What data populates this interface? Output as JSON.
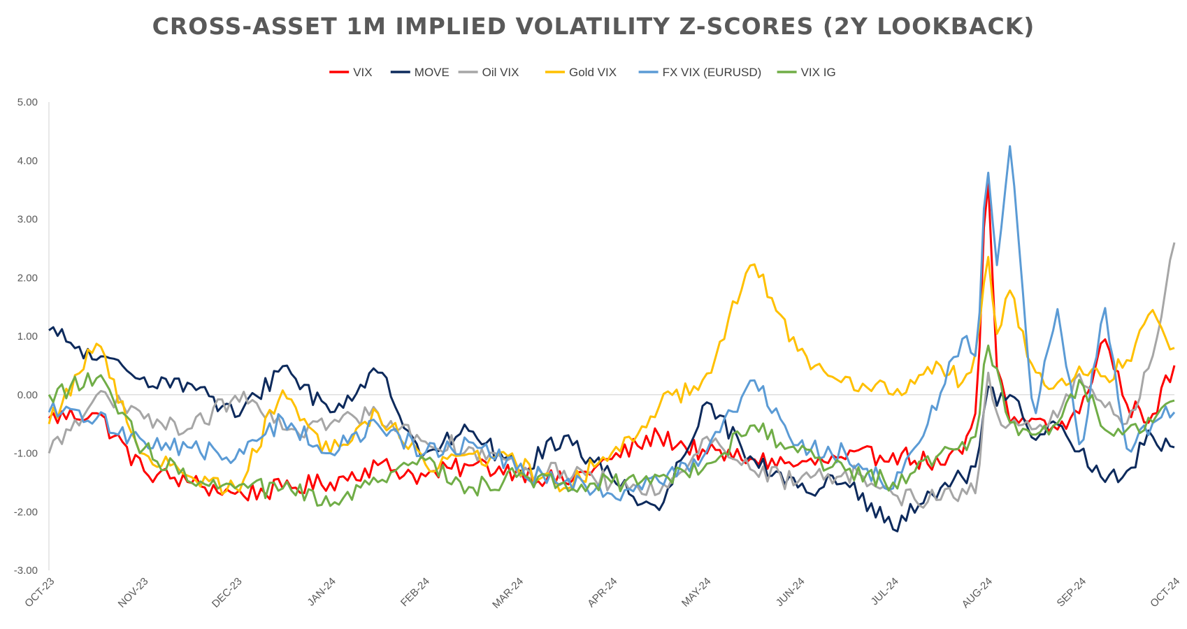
{
  "chart_data": {
    "type": "line",
    "title": "CROSS-ASSET 1M IMPLIED VOLATILITY Z-SCORES (2Y LOOKBACK)",
    "xlabel": "",
    "ylabel": "",
    "ylim": [
      -3,
      5
    ],
    "yticks": [
      "5.00",
      "4.00",
      "3.00",
      "2.00",
      "1.00",
      "0.00",
      "-1.00",
      "-2.00",
      "-3.00"
    ],
    "ytick_values": [
      5,
      4,
      3,
      2,
      1,
      0,
      -1,
      -2,
      -3
    ],
    "xticks": [
      "OCT-23",
      "NOV-23",
      "DEC-23",
      "JAN-24",
      "FEB-24",
      "MAR-24",
      "APR-24",
      "MAY-24",
      "JUN-24",
      "JUL-24",
      "AUG-24",
      "SEP-24",
      "OCT-24"
    ],
    "grid": false,
    "legend_position": "top",
    "x_months": [
      0,
      0.5,
      1,
      1.5,
      2,
      2.5,
      3,
      3.5,
      4,
      4.5,
      5,
      5.5,
      6,
      6.5,
      7,
      7.5,
      8,
      8.5,
      9,
      9.5,
      9.75,
      9.9,
      10,
      10.1,
      10.25,
      10.5,
      10.75,
      11,
      11.25,
      11.5,
      11.75,
      12
    ],
    "series": [
      {
        "name": "VIX",
        "color": "#ff0000",
        "values": [
          -0.4,
          -0.3,
          -1.3,
          -1.5,
          -1.7,
          -1.6,
          -1.5,
          -1.2,
          -1.4,
          -1.2,
          -1.3,
          -1.5,
          -1.1,
          -0.7,
          -1.0,
          -1.1,
          -1.2,
          -1.1,
          -1.0,
          -1.2,
          -1.0,
          -0.2,
          4.2,
          0.5,
          -0.5,
          -0.4,
          -0.6,
          -0.3,
          1.0,
          -0.2,
          -0.4,
          0.5
        ]
      },
      {
        "name": "MOVE",
        "color": "#0d2a5c",
        "values": [
          1.1,
          0.6,
          0.3,
          0.2,
          -0.4,
          0.5,
          -0.3,
          0.4,
          -1.0,
          -0.6,
          -1.3,
          -0.7,
          -1.4,
          -2.0,
          -0.1,
          -1.1,
          -1.6,
          -1.5,
          -2.3,
          -1.6,
          -1.4,
          -1.2,
          0.2,
          -0.2,
          0.0,
          -0.8,
          -0.5,
          -1.0,
          -1.5,
          -1.3,
          -0.7,
          -0.9
        ]
      },
      {
        "name": "Oil VIX",
        "color": "#a6a6a6",
        "values": [
          -1.0,
          0.0,
          -0.4,
          -0.6,
          0.0,
          -0.6,
          -0.5,
          -0.3,
          -0.8,
          -0.9,
          -1.3,
          -1.3,
          -1.5,
          -1.7,
          -0.7,
          -1.3,
          -1.5,
          -1.3,
          -1.7,
          -1.8,
          -1.6,
          -1.7,
          0.5,
          -0.3,
          -0.5,
          -0.6,
          -0.4,
          0.4,
          -0.2,
          -0.5,
          0.5,
          2.6
        ]
      },
      {
        "name": "Gold VIX",
        "color": "#ffc000",
        "values": [
          -0.5,
          0.9,
          -1.0,
          -1.4,
          -1.6,
          0.1,
          -1.0,
          -0.3,
          -1.2,
          -1.0,
          -1.2,
          -1.6,
          -1.0,
          -0.2,
          0.3,
          2.3,
          0.7,
          0.3,
          0.0,
          0.5,
          0.2,
          0.8,
          2.6,
          1.0,
          1.8,
          0.4,
          0.2,
          0.5,
          0.3,
          0.6,
          1.5,
          0.8
        ]
      },
      {
        "name": "FX VIX (EURUSD)",
        "color": "#5b9bd5",
        "values": [
          -0.3,
          -0.4,
          -0.8,
          -0.9,
          -1.1,
          -0.4,
          -1.0,
          -0.5,
          -1.0,
          -0.8,
          -1.3,
          -1.5,
          -1.7,
          -1.5,
          -1.0,
          0.3,
          -0.9,
          -1.0,
          -1.6,
          0.0,
          1.0,
          0.6,
          4.1,
          2.1,
          4.3,
          -0.5,
          1.5,
          -1.0,
          1.6,
          -1.0,
          -0.5,
          -0.3
        ]
      },
      {
        "name": "VIX IG",
        "color": "#70ad47",
        "values": [
          0.0,
          0.3,
          -0.9,
          -1.5,
          -1.6,
          -1.6,
          -1.9,
          -1.5,
          -1.1,
          -1.6,
          -1.4,
          -1.5,
          -1.5,
          -1.4,
          -1.2,
          -0.5,
          -1.0,
          -1.3,
          -1.5,
          -1.0,
          -0.8,
          -0.7,
          0.9,
          0.5,
          -0.5,
          -0.7,
          -0.5,
          0.3,
          -0.6,
          -0.6,
          -0.5,
          -0.1
        ]
      }
    ]
  }
}
